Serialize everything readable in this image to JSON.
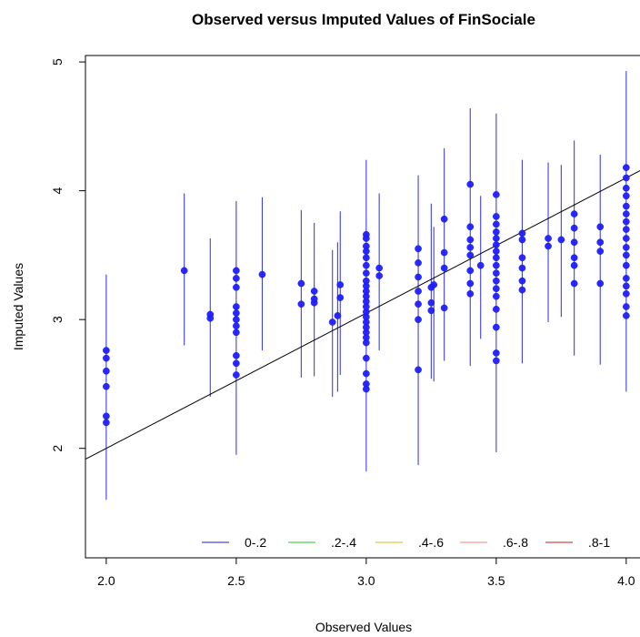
{
  "chart_data": {
    "type": "scatter",
    "title": "Observed versus Imputed Values of FinSociale",
    "xlabel": "Observed Values",
    "ylabel": "Imputed Values",
    "xlim": [
      1.92,
      4.06
    ],
    "ylim": [
      1.15,
      5.05
    ],
    "x_ticks": [
      "2.0",
      "2.5",
      "3.0",
      "3.5",
      "4.0"
    ],
    "y_ticks": [
      "2",
      "3",
      "4",
      "5"
    ],
    "grid": false,
    "legend_placement": "bottom-right",
    "legend": [
      {
        "label": "0-.2",
        "color": "#4b4bd8"
      },
      {
        "label": ".2-.4",
        "color": "#4fcf4f"
      },
      {
        "label": ".4-.6",
        "color": "#e8c84a"
      },
      {
        "label": ".6-.8",
        "color": "#f0a08c"
      },
      {
        "label": ".8-1",
        "color": "#d84b4b"
      }
    ],
    "point_color": "#1f1fff",
    "interval_color": "#4040e0",
    "fit_line": {
      "intercept": -0.1,
      "slope": 1.05
    },
    "intervals": [
      {
        "x": 2.0,
        "low": 1.6,
        "high": 3.35
      },
      {
        "x": 2.3,
        "low": 2.8,
        "high": 3.98
      },
      {
        "x": 2.4,
        "low": 2.4,
        "high": 3.63
      },
      {
        "x": 2.5,
        "low": 1.95,
        "high": 3.92
      },
      {
        "x": 2.6,
        "low": 2.76,
        "high": 3.95
      },
      {
        "x": 2.75,
        "low": 2.55,
        "high": 3.85
      },
      {
        "x": 2.8,
        "low": 2.56,
        "high": 3.75
      },
      {
        "x": 2.87,
        "low": 2.4,
        "high": 3.54
      },
      {
        "x": 2.89,
        "low": 2.44,
        "high": 3.6
      },
      {
        "x": 2.9,
        "low": 2.57,
        "high": 3.84
      },
      {
        "x": 3.0,
        "low": 1.82,
        "high": 4.24
      },
      {
        "x": 3.05,
        "low": 2.76,
        "high": 3.98
      },
      {
        "x": 3.2,
        "low": 1.87,
        "high": 4.12
      },
      {
        "x": 3.25,
        "low": 2.54,
        "high": 3.9
      },
      {
        "x": 3.26,
        "low": 2.52,
        "high": 3.72
      },
      {
        "x": 3.3,
        "low": 2.68,
        "high": 4.33
      },
      {
        "x": 3.4,
        "low": 2.64,
        "high": 4.64
      },
      {
        "x": 3.44,
        "low": 2.85,
        "high": 3.96
      },
      {
        "x": 3.5,
        "low": 1.97,
        "high": 4.6
      },
      {
        "x": 3.6,
        "low": 2.66,
        "high": 4.24
      },
      {
        "x": 3.7,
        "low": 2.98,
        "high": 4.22
      },
      {
        "x": 3.75,
        "low": 3.02,
        "high": 4.2
      },
      {
        "x": 3.8,
        "low": 2.72,
        "high": 4.39
      },
      {
        "x": 3.9,
        "low": 2.65,
        "high": 4.28
      },
      {
        "x": 4.0,
        "low": 2.44,
        "high": 4.93
      }
    ],
    "points": [
      [
        2.0,
        2.2
      ],
      [
        2.0,
        2.25
      ],
      [
        2.0,
        2.48
      ],
      [
        2.0,
        2.6
      ],
      [
        2.0,
        2.7
      ],
      [
        2.0,
        2.76
      ],
      [
        2.3,
        3.38
      ],
      [
        2.4,
        3.01
      ],
      [
        2.4,
        3.04
      ],
      [
        2.5,
        2.57
      ],
      [
        2.5,
        2.66
      ],
      [
        2.5,
        2.72
      ],
      [
        2.5,
        2.9
      ],
      [
        2.5,
        2.95
      ],
      [
        2.5,
        3.0
      ],
      [
        2.5,
        3.05
      ],
      [
        2.5,
        3.1
      ],
      [
        2.5,
        3.25
      ],
      [
        2.5,
        3.32
      ],
      [
        2.5,
        3.38
      ],
      [
        2.6,
        3.35
      ],
      [
        2.75,
        3.12
      ],
      [
        2.75,
        3.28
      ],
      [
        2.8,
        3.13
      ],
      [
        2.8,
        3.16
      ],
      [
        2.8,
        3.22
      ],
      [
        2.87,
        2.98
      ],
      [
        2.89,
        3.03
      ],
      [
        2.9,
        3.17
      ],
      [
        2.9,
        3.27
      ],
      [
        3.0,
        2.46
      ],
      [
        3.0,
        2.5
      ],
      [
        3.0,
        2.58
      ],
      [
        3.0,
        2.7
      ],
      [
        3.0,
        2.82
      ],
      [
        3.0,
        2.86
      ],
      [
        3.0,
        2.9
      ],
      [
        3.0,
        2.94
      ],
      [
        3.0,
        2.98
      ],
      [
        3.0,
        3.02
      ],
      [
        3.0,
        3.06
      ],
      [
        3.0,
        3.1
      ],
      [
        3.0,
        3.14
      ],
      [
        3.0,
        3.18
      ],
      [
        3.0,
        3.22
      ],
      [
        3.0,
        3.26
      ],
      [
        3.0,
        3.3
      ],
      [
        3.0,
        3.36
      ],
      [
        3.0,
        3.42
      ],
      [
        3.0,
        3.48
      ],
      [
        3.0,
        3.53
      ],
      [
        3.0,
        3.57
      ],
      [
        3.0,
        3.63
      ],
      [
        3.0,
        3.66
      ],
      [
        3.05,
        3.34
      ],
      [
        3.05,
        3.4
      ],
      [
        3.2,
        2.61
      ],
      [
        3.2,
        3.0
      ],
      [
        3.2,
        3.12
      ],
      [
        3.2,
        3.22
      ],
      [
        3.2,
        3.33
      ],
      [
        3.2,
        3.44
      ],
      [
        3.2,
        3.55
      ],
      [
        3.25,
        3.07
      ],
      [
        3.25,
        3.13
      ],
      [
        3.25,
        3.25
      ],
      [
        3.26,
        3.27
      ],
      [
        3.3,
        3.09
      ],
      [
        3.3,
        3.4
      ],
      [
        3.3,
        3.52
      ],
      [
        3.3,
        3.78
      ],
      [
        3.4,
        3.2
      ],
      [
        3.4,
        3.28
      ],
      [
        3.4,
        3.38
      ],
      [
        3.4,
        3.5
      ],
      [
        3.4,
        3.56
      ],
      [
        3.4,
        3.62
      ],
      [
        3.4,
        3.72
      ],
      [
        3.4,
        4.05
      ],
      [
        3.44,
        3.42
      ],
      [
        3.5,
        2.68
      ],
      [
        3.5,
        2.74
      ],
      [
        3.5,
        2.94
      ],
      [
        3.5,
        3.08
      ],
      [
        3.5,
        3.18
      ],
      [
        3.5,
        3.24
      ],
      [
        3.5,
        3.3
      ],
      [
        3.5,
        3.36
      ],
      [
        3.5,
        3.42
      ],
      [
        3.5,
        3.48
      ],
      [
        3.5,
        3.53
      ],
      [
        3.5,
        3.58
      ],
      [
        3.5,
        3.63
      ],
      [
        3.5,
        3.68
      ],
      [
        3.5,
        3.74
      ],
      [
        3.5,
        3.8
      ],
      [
        3.5,
        3.97
      ],
      [
        3.6,
        3.23
      ],
      [
        3.6,
        3.3
      ],
      [
        3.6,
        3.4
      ],
      [
        3.6,
        3.48
      ],
      [
        3.6,
        3.62
      ],
      [
        3.6,
        3.67
      ],
      [
        3.7,
        3.57
      ],
      [
        3.7,
        3.63
      ],
      [
        3.75,
        3.62
      ],
      [
        3.8,
        3.28
      ],
      [
        3.8,
        3.42
      ],
      [
        3.8,
        3.48
      ],
      [
        3.8,
        3.6
      ],
      [
        3.8,
        3.71
      ],
      [
        3.8,
        3.82
      ],
      [
        3.9,
        3.28
      ],
      [
        3.9,
        3.53
      ],
      [
        3.9,
        3.6
      ],
      [
        3.9,
        3.72
      ],
      [
        4.0,
        3.03
      ],
      [
        4.0,
        3.1
      ],
      [
        4.0,
        3.2
      ],
      [
        4.0,
        3.26
      ],
      [
        4.0,
        3.32
      ],
      [
        4.0,
        3.42
      ],
      [
        4.0,
        3.5
      ],
      [
        4.0,
        3.56
      ],
      [
        4.0,
        3.63
      ],
      [
        4.0,
        3.7
      ],
      [
        4.0,
        3.76
      ],
      [
        4.0,
        3.82
      ],
      [
        4.0,
        3.88
      ],
      [
        4.0,
        3.96
      ],
      [
        4.0,
        4.02
      ],
      [
        4.0,
        4.1
      ],
      [
        4.0,
        4.18
      ]
    ]
  }
}
